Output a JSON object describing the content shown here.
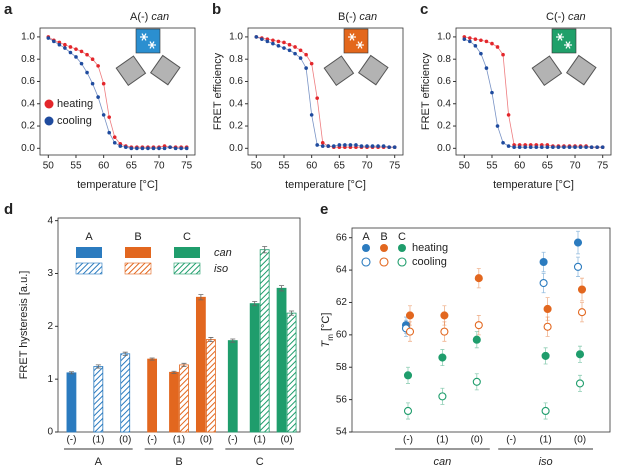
{
  "chart_data": [
    {
      "type": "scatter",
      "panel": "a",
      "annotation": "A(-)",
      "annotation_italic": "can",
      "inset_color": "#2b8fd0",
      "xlabel": "temperature [°C]",
      "x": [
        50,
        51,
        52,
        53,
        54,
        55,
        56,
        57,
        58,
        59,
        60,
        61,
        62,
        63,
        64,
        65,
        66,
        67,
        68,
        69,
        70,
        71,
        72,
        73,
        74,
        75
      ],
      "xlim": [
        48.5,
        76.5
      ],
      "xticks": [
        50,
        55,
        60,
        65,
        70,
        75
      ],
      "ylim": [
        -0.06,
        1.08
      ],
      "yticks": [
        {
          "value": 0,
          "label": "0.0"
        },
        0.2,
        0.4,
        0.6,
        0.8,
        {
          "value": 1,
          "label": "1.0"
        }
      ],
      "legend": "left",
      "series": [
        {
          "name": "heating",
          "color": "#e3262b",
          "values": [
            1.0,
            0.97,
            0.95,
            0.93,
            0.91,
            0.89,
            0.87,
            0.84,
            0.8,
            0.74,
            0.58,
            0.28,
            0.1,
            0.04,
            0.02,
            0.01,
            0.01,
            0.01,
            0.01,
            0.01,
            0.01,
            0.02,
            0.01,
            0.01,
            0.01,
            0.01
          ]
        },
        {
          "name": "cooling",
          "color": "#1f4b9e",
          "values": [
            0.99,
            0.96,
            0.93,
            0.9,
            0.86,
            0.82,
            0.76,
            0.68,
            0.58,
            0.46,
            0.3,
            0.14,
            0.05,
            0.02,
            0.01,
            0,
            0,
            0,
            0,
            0,
            0,
            0,
            0.01,
            0,
            0,
            0
          ]
        }
      ]
    },
    {
      "type": "scatter",
      "panel": "b",
      "annotation": "B(-)",
      "annotation_italic": "can",
      "inset_color": "#e3671c",
      "xlabel": "temperature [°C]",
      "ylabel": "FRET efficiency",
      "x": [
        50,
        51,
        52,
        53,
        54,
        55,
        56,
        57,
        58,
        59,
        60,
        61,
        62,
        63,
        64,
        65,
        66,
        67,
        68,
        69,
        70,
        71,
        72,
        73,
        74,
        75
      ],
      "xlim": [
        48.5,
        76.5
      ],
      "xticks": [
        50,
        55,
        60,
        65,
        70,
        75
      ],
      "ylim": [
        -0.06,
        1.08
      ],
      "yticks": [
        {
          "value": 0,
          "label": "0.0"
        },
        0.2,
        0.4,
        0.6,
        0.8,
        {
          "value": 1,
          "label": "1.0"
        }
      ],
      "series": [
        {
          "color": "#e3262b",
          "values": [
            1.0,
            0.99,
            0.98,
            0.97,
            0.96,
            0.95,
            0.93,
            0.91,
            0.88,
            0.84,
            0.76,
            0.45,
            0.05,
            0.02,
            0.01,
            0.01,
            0.01,
            0.01,
            0.01,
            0.01,
            0.01,
            0.01,
            0.01,
            0.01,
            0.01,
            0.01
          ]
        },
        {
          "color": "#1f4b9e",
          "values": [
            1.0,
            0.98,
            0.96,
            0.94,
            0.92,
            0.9,
            0.88,
            0.85,
            0.81,
            0.72,
            0.3,
            0.03,
            0.02,
            0.02,
            0.02,
            0.03,
            0.03,
            0.03,
            0.03,
            0.02,
            0.02,
            0.02,
            0.02,
            0.02,
            0.01,
            0.01
          ]
        }
      ]
    },
    {
      "type": "scatter",
      "panel": "c",
      "annotation": "C(-)",
      "annotation_italic": "can",
      "inset_color": "#20a06a",
      "xlabel": "temperature [°C]",
      "ylabel": "FRET efficiency",
      "x": [
        50,
        51,
        52,
        53,
        54,
        55,
        56,
        57,
        58,
        59,
        60,
        61,
        62,
        63,
        64,
        65,
        66,
        67,
        68,
        69,
        70,
        71,
        72,
        73,
        74,
        75
      ],
      "xlim": [
        48.5,
        76.5
      ],
      "xticks": [
        50,
        55,
        60,
        65,
        70,
        75
      ],
      "ylim": [
        -0.06,
        1.08
      ],
      "yticks": [
        {
          "value": 0,
          "label": "0.0"
        },
        0.2,
        0.4,
        0.6,
        0.8,
        {
          "value": 1,
          "label": "1.0"
        }
      ],
      "series": [
        {
          "color": "#e3262b",
          "values": [
            1.0,
            0.99,
            0.98,
            0.97,
            0.96,
            0.94,
            0.91,
            0.84,
            0.3,
            0.03,
            0.03,
            0.03,
            0.03,
            0.03,
            0.03,
            0.03,
            0.02,
            0.02,
            0.02,
            0.02,
            0.02,
            0.02,
            0.02,
            0.01,
            0.01,
            0.01
          ]
        },
        {
          "color": "#1f4b9e",
          "values": [
            0.98,
            0.96,
            0.92,
            0.85,
            0.72,
            0.5,
            0.2,
            0.05,
            0.02,
            0.01,
            0.01,
            0.01,
            0.01,
            0.01,
            0.01,
            0.01,
            0.01,
            0.01,
            0.01,
            0.01,
            0.01,
            0.01,
            0.01,
            0.01,
            0.01,
            0.01
          ]
        }
      ]
    },
    {
      "type": "bar",
      "panel": "d",
      "ylabel": "FRET hysteresis [a.u.]",
      "categories": [
        "(-)",
        "(1)",
        "(0)"
      ],
      "marker_rows": [
        "can",
        "iso"
      ],
      "ylim": [
        0,
        4.05
      ],
      "yticks": [
        0,
        1,
        2,
        3,
        4
      ],
      "series": [
        {
          "name": "A",
          "color": "#2b7bbf",
          "values": [
            1.12,
            null,
            null
          ],
          "errors": [
            0.02,
            null,
            null
          ],
          "iso_values": [
            null,
            1.24,
            1.48
          ],
          "iso_errors": [
            null,
            0.03,
            0.03
          ]
        },
        {
          "name": "B",
          "color": "#e2671f",
          "values": [
            1.38,
            1.13,
            2.55
          ],
          "errors": [
            0.02,
            0.02,
            0.05
          ],
          "iso_values": [
            null,
            1.27,
            1.75
          ],
          "iso_errors": [
            null,
            0.03,
            0.04
          ]
        },
        {
          "name": "C",
          "color": "#1f9d6c",
          "values": [
            1.73,
            2.43,
            2.72
          ],
          "errors": [
            0.03,
            0.04,
            0.05
          ],
          "iso_values": [
            null,
            3.45,
            2.25
          ],
          "iso_errors": [
            null,
            0.06,
            0.04
          ]
        }
      ]
    },
    {
      "type": "point",
      "panel": "e",
      "ylabel": "T",
      "ylabel_sub": "m",
      "ylabel_unit": "[°C]",
      "categories": [
        "(-)",
        "(1)",
        "(0)",
        "(-)",
        "(1)",
        "(0)"
      ],
      "x_groups": [
        "can",
        "iso"
      ],
      "marker_rows": [
        "heating",
        "cooling"
      ],
      "ylim": [
        54,
        66.6
      ],
      "yticks": [
        54,
        56,
        58,
        60,
        62,
        64,
        66
      ],
      "series": [
        {
          "name": "A",
          "color": "#2b7bbf",
          "values": [
            60.6,
            null,
            null,
            null,
            64.5,
            65.7
          ],
          "errors": [
            0.5,
            null,
            null,
            null,
            0.6,
            0.7
          ],
          "cooling_values": [
            60.4,
            null,
            null,
            null,
            63.2,
            64.2
          ],
          "cooling_errors": [
            0.5,
            null,
            null,
            null,
            0.6,
            0.6
          ]
        },
        {
          "name": "B",
          "color": "#e2671f",
          "values": [
            61.2,
            61.2,
            63.5,
            null,
            61.6,
            62.8
          ],
          "errors": [
            0.6,
            0.6,
            0.6,
            null,
            0.7,
            0.7
          ],
          "cooling_values": [
            60.2,
            60.2,
            60.6,
            null,
            60.5,
            61.4
          ],
          "cooling_errors": [
            0.6,
            0.6,
            0.6,
            null,
            0.6,
            0.6
          ]
        },
        {
          "name": "C",
          "color": "#1f9d6c",
          "values": [
            57.5,
            58.6,
            59.7,
            null,
            58.7,
            58.8
          ],
          "errors": [
            0.5,
            0.5,
            0.5,
            null,
            0.5,
            0.5
          ],
          "cooling_values": [
            55.3,
            56.2,
            57.1,
            null,
            55.3,
            57.0
          ],
          "cooling_errors": [
            0.5,
            0.5,
            0.5,
            null,
            0.5,
            0.5
          ]
        }
      ]
    }
  ]
}
